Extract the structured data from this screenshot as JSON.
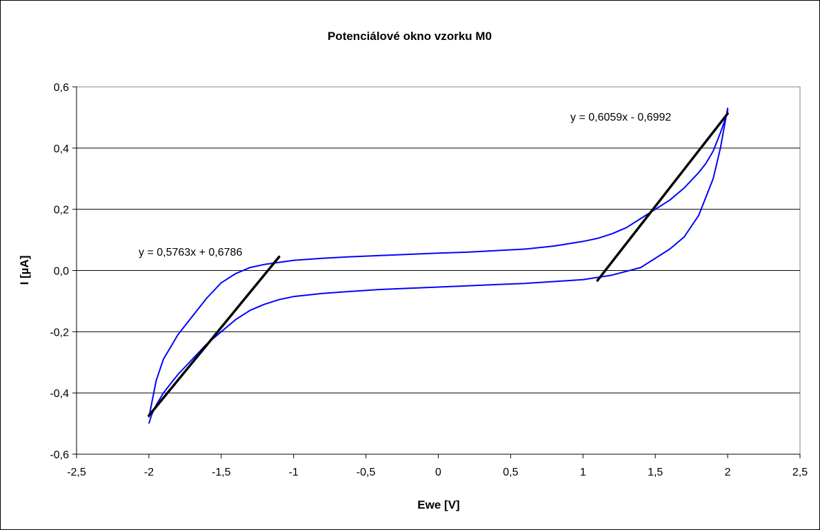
{
  "chart_data": {
    "type": "scatter",
    "title": "Potenciálové okno vzorku M0",
    "xlabel": "Ewe [V]",
    "ylabel": "I [µA]",
    "xlim": [
      -2.5,
      2.5
    ],
    "ylim": [
      -0.6,
      0.6
    ],
    "x_ticks": [
      "-2,5",
      "-2",
      "-1,5",
      "-1",
      "-0,5",
      "0",
      "0,5",
      "1",
      "1,5",
      "2",
      "2,5"
    ],
    "y_ticks": [
      "-0,6",
      "-0,4",
      "-0,2",
      "0,0",
      "0,2",
      "0,4",
      "0,6"
    ],
    "grid": "horizontal major gridlines",
    "legend": "none",
    "series": [
      {
        "color": "#0000ff",
        "style": "line",
        "x": [
          -2.0,
          -1.98,
          -1.95,
          -1.9,
          -1.85,
          -1.8,
          -1.7,
          -1.6,
          -1.5,
          -1.4,
          -1.3,
          -1.2,
          -1.1,
          -1.0,
          -0.8,
          -0.6,
          -0.4,
          -0.2,
          0.0,
          0.2,
          0.4,
          0.6,
          0.8,
          1.0,
          1.2,
          1.4,
          1.6,
          1.7,
          1.8,
          1.9,
          1.95,
          2.0,
          2.0,
          1.98,
          1.95,
          1.9,
          1.85,
          1.8,
          1.7,
          1.6,
          1.5,
          1.4,
          1.3,
          1.2,
          1.1,
          1.0,
          0.8,
          0.6,
          0.4,
          0.2,
          0.0,
          -0.2,
          -0.4,
          -0.6,
          -0.8,
          -1.0,
          -1.2,
          -1.3,
          -1.4,
          -1.5,
          -1.6,
          -1.7,
          -1.8,
          -1.9,
          -1.95,
          -2.0
        ],
        "y": [
          -0.5,
          -0.47,
          -0.44,
          -0.4,
          -0.37,
          -0.34,
          -0.29,
          -0.24,
          -0.2,
          -0.16,
          -0.13,
          -0.11,
          -0.095,
          -0.085,
          -0.075,
          -0.068,
          -0.062,
          -0.058,
          -0.054,
          -0.05,
          -0.046,
          -0.042,
          -0.036,
          -0.03,
          -0.015,
          0.01,
          0.07,
          0.11,
          0.18,
          0.3,
          0.4,
          0.53,
          0.52,
          0.49,
          0.45,
          0.39,
          0.35,
          0.32,
          0.27,
          0.23,
          0.2,
          0.17,
          0.14,
          0.12,
          0.105,
          0.095,
          0.08,
          0.07,
          0.065,
          0.06,
          0.057,
          0.053,
          0.049,
          0.045,
          0.04,
          0.033,
          0.02,
          0.01,
          -0.01,
          -0.04,
          -0.09,
          -0.15,
          -0.21,
          -0.29,
          -0.36,
          -0.48
        ]
      }
    ],
    "trendlines": [
      {
        "equation": "y = 0,5763x + 0,6786",
        "slope": 0.5763,
        "intercept": 0.6786,
        "x_range": [
          -2.0,
          -1.1
        ],
        "color": "#000000"
      },
      {
        "equation": "y = 0,6059x - 0,6992",
        "slope": 0.6059,
        "intercept": -0.6992,
        "x_range": [
          1.1,
          2.0
        ],
        "color": "#000000"
      }
    ]
  }
}
